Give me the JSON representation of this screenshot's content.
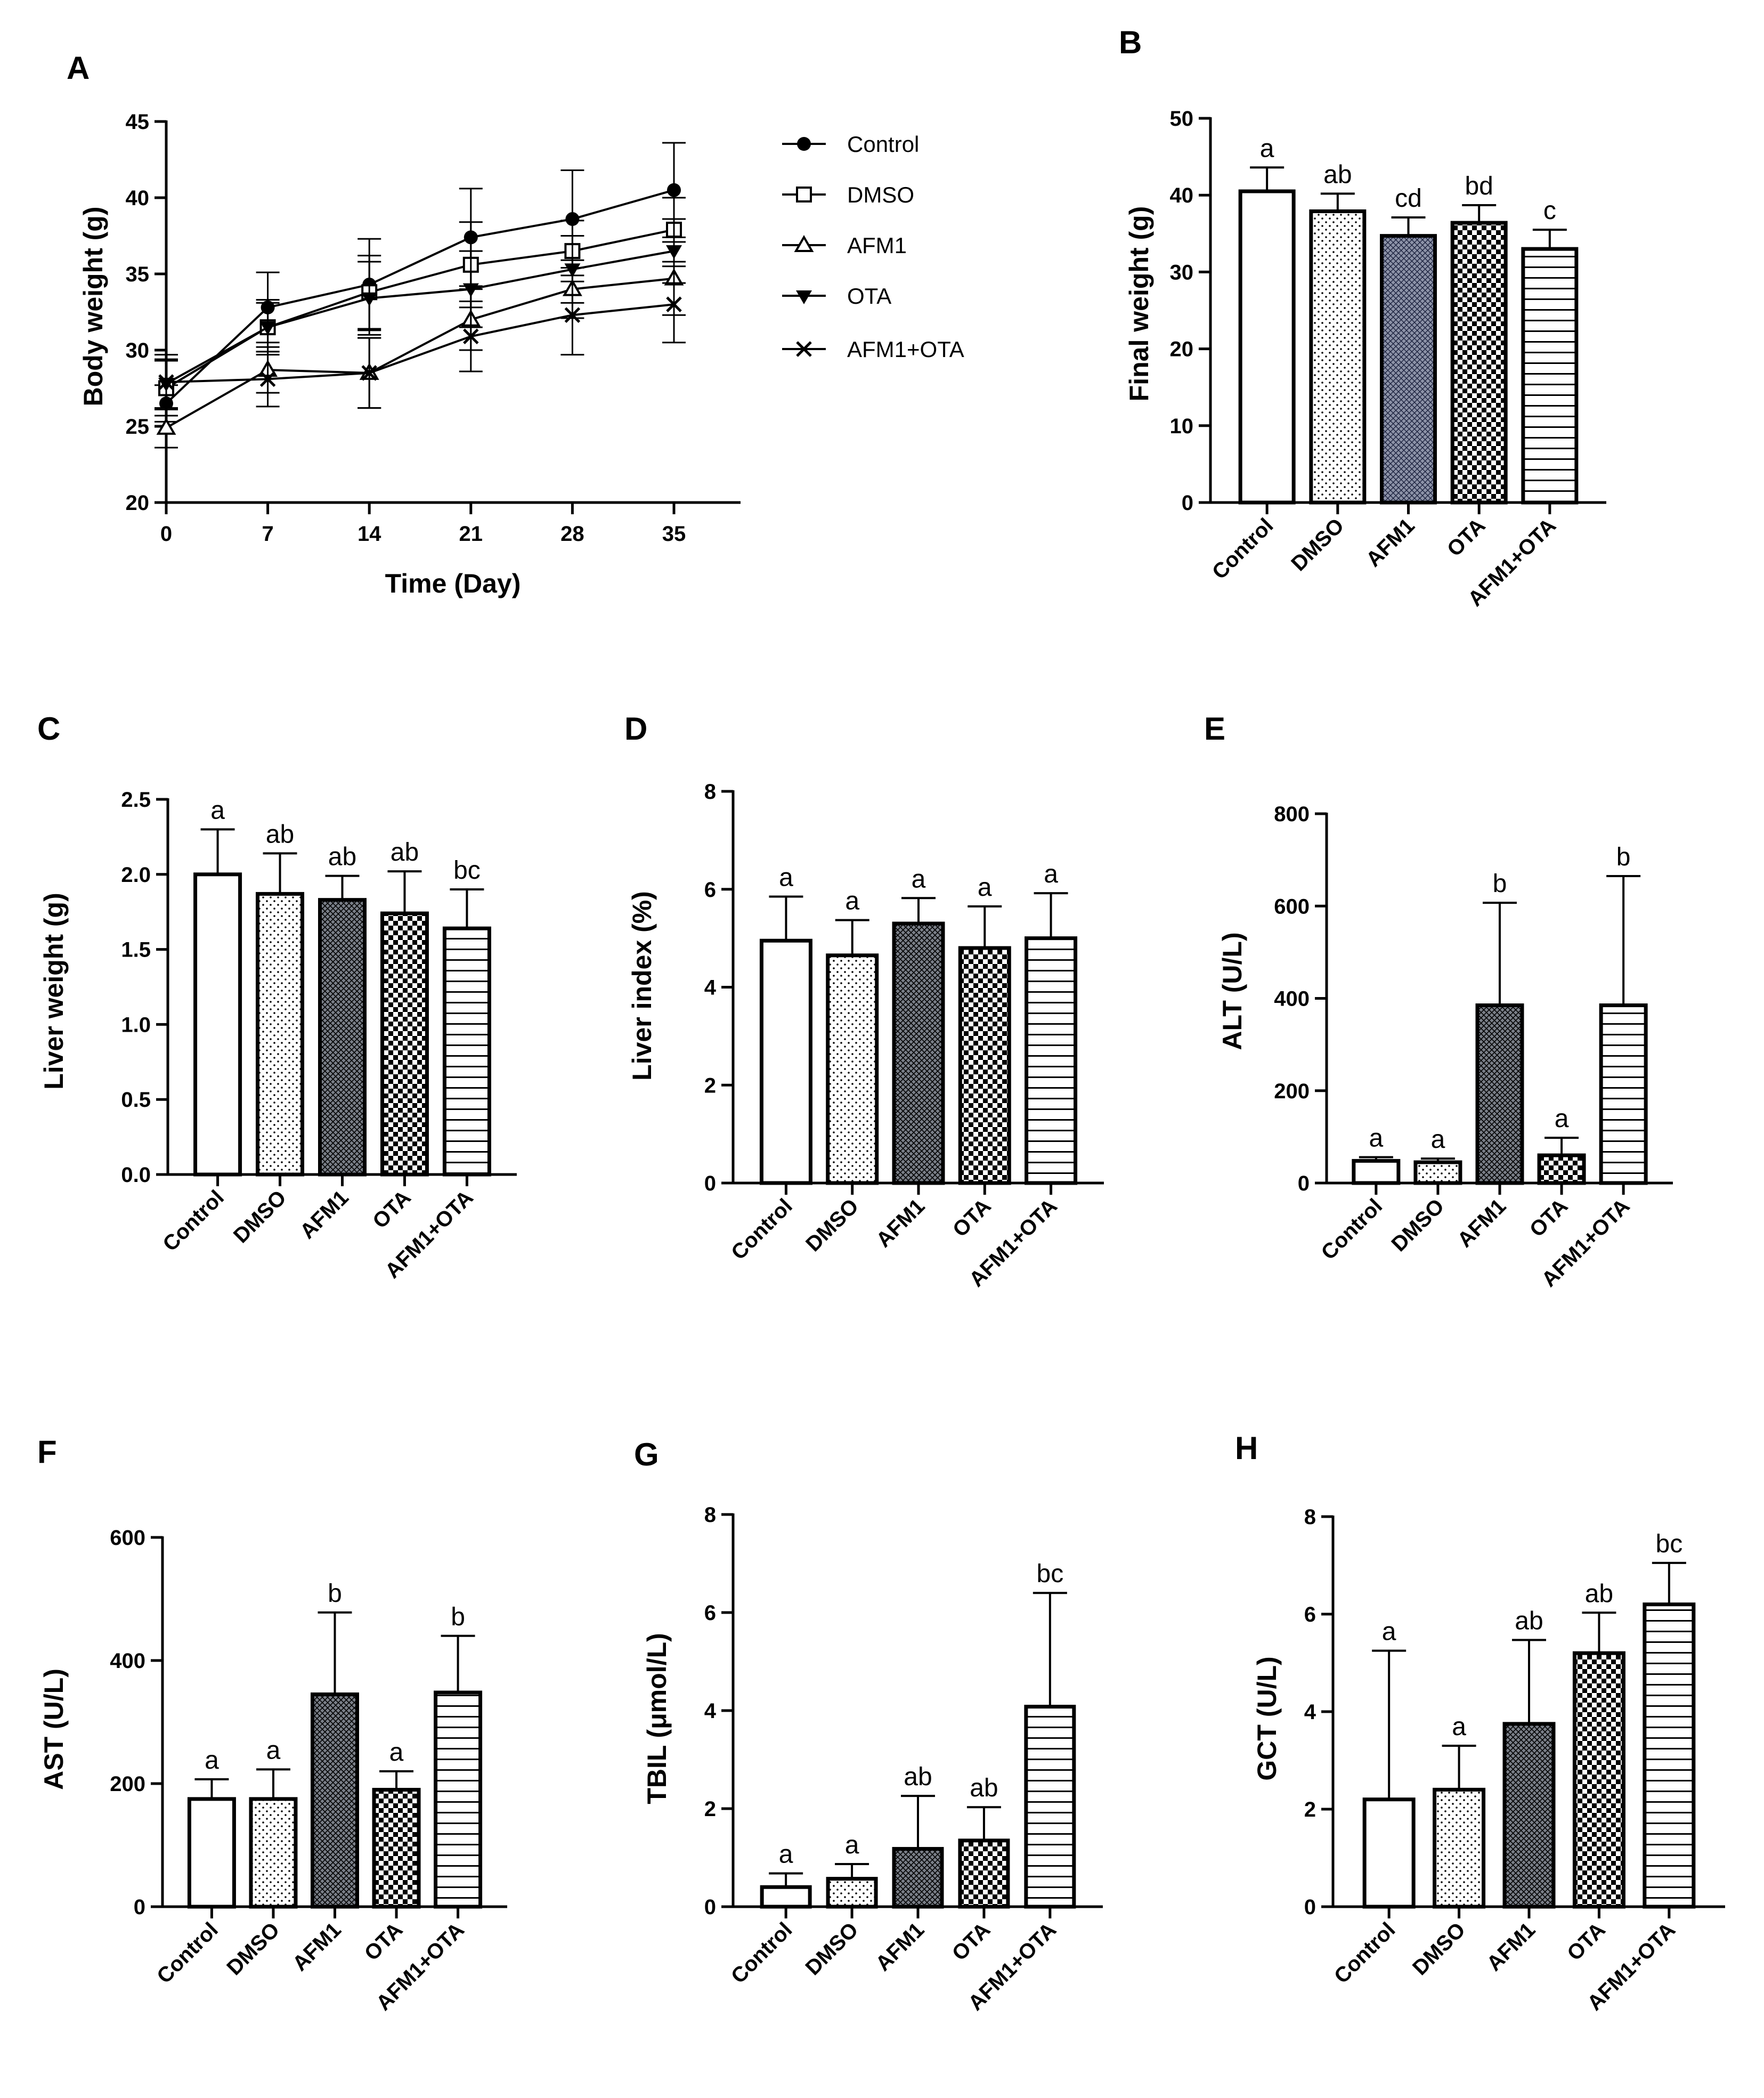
{
  "colors": {
    "ink": "#000000",
    "afm1_fill": "#8d93a8",
    "background": "#ffffff"
  },
  "chart_data": [
    {
      "id": "A",
      "type": "line",
      "panel": "A",
      "title": "",
      "xlabel": "Time (Day)",
      "ylabel": "Body weight (g)",
      "x": [
        0,
        7,
        14,
        21,
        28,
        35
      ],
      "xticks": [
        "0",
        "7",
        "14",
        "21",
        "28",
        "35"
      ],
      "ylim": [
        20,
        45
      ],
      "yticks": [
        "20",
        "25",
        "30",
        "35",
        "40",
        "45"
      ],
      "legend_position": "right",
      "series": [
        {
          "name": "Control",
          "marker": "filled-circle",
          "values": [
            26.5,
            32.8,
            34.3,
            37.4,
            38.6,
            40.5
          ],
          "err": [
            1.2,
            2.3,
            3.0,
            3.2,
            3.2,
            3.1
          ]
        },
        {
          "name": "DMSO",
          "marker": "open-square",
          "values": [
            27.5,
            31.5,
            33.8,
            35.6,
            36.5,
            37.9
          ],
          "err": [
            1.8,
            1.6,
            2.4,
            2.8,
            2.0,
            2.1
          ]
        },
        {
          "name": "AFM1",
          "marker": "open-triangle",
          "values": [
            24.9,
            28.7,
            28.5,
            32.0,
            34.0,
            34.7
          ],
          "err": [
            1.3,
            1.5,
            2.3,
            2.0,
            1.9,
            2.4
          ]
        },
        {
          "name": "OTA",
          "marker": "filled-triangle-down",
          "values": [
            27.8,
            31.5,
            33.4,
            34.0,
            35.3,
            36.5
          ],
          "err": [
            1.6,
            1.8,
            2.4,
            2.5,
            2.2,
            2.1
          ]
        },
        {
          "name": "AFM1+OTA",
          "marker": "x-cross",
          "values": [
            27.9,
            28.1,
            28.5,
            30.9,
            32.3,
            33.0
          ],
          "err": [
            1.8,
            1.8,
            2.3,
            2.3,
            2.6,
            2.5
          ]
        }
      ]
    },
    {
      "id": "B",
      "type": "bar",
      "panel": "B",
      "title": "",
      "xlabel": "",
      "ylabel": "Final weight (g)",
      "categories": [
        "Control",
        "DMSO",
        "AFM1",
        "OTA",
        "AFM1+OTA"
      ],
      "values": [
        40.5,
        37.9,
        34.7,
        36.4,
        33.0
      ],
      "err": [
        3.1,
        2.3,
        2.4,
        2.3,
        2.5
      ],
      "labels": [
        "a",
        "ab",
        "cd",
        "bd",
        "c"
      ],
      "ylim": [
        0,
        50
      ],
      "yticks": [
        "0",
        "10",
        "20",
        "30",
        "40",
        "50"
      ]
    },
    {
      "id": "C",
      "type": "bar",
      "panel": "C",
      "title": "",
      "xlabel": "",
      "ylabel": "Liver weight (g)",
      "categories": [
        "Control",
        "DMSO",
        "AFM1",
        "OTA",
        "AFM1+OTA"
      ],
      "values": [
        2.0,
        1.87,
        1.83,
        1.74,
        1.64
      ],
      "err": [
        0.3,
        0.27,
        0.16,
        0.28,
        0.26
      ],
      "labels": [
        "a",
        "ab",
        "ab",
        "ab",
        "bc"
      ],
      "ylim": [
        0,
        2.5
      ],
      "yticks": [
        "0.0",
        "0.5",
        "1.0",
        "1.5",
        "2.0",
        "2.5"
      ]
    },
    {
      "id": "D",
      "type": "bar",
      "panel": "D",
      "title": "",
      "xlabel": "",
      "ylabel": "Liver index (%)",
      "categories": [
        "Control",
        "DMSO",
        "AFM1",
        "OTA",
        "AFM1+OTA"
      ],
      "values": [
        4.95,
        4.65,
        5.3,
        4.8,
        5.0
      ],
      "err": [
        0.9,
        0.72,
        0.52,
        0.85,
        0.92
      ],
      "labels": [
        "a",
        "a",
        "a",
        "a",
        "a"
      ],
      "ylim": [
        0,
        8
      ],
      "yticks": [
        "0",
        "2",
        "4",
        "6",
        "8"
      ]
    },
    {
      "id": "E",
      "type": "bar",
      "panel": "E",
      "title": "",
      "xlabel": "",
      "ylabel": "ALT (U/L)",
      "categories": [
        "Control",
        "DMSO",
        "AFM1",
        "OTA",
        "AFM1+OTA"
      ],
      "values": [
        48,
        45,
        385,
        60,
        385
      ],
      "err": [
        8,
        8,
        222,
        38,
        280
      ],
      "labels": [
        "a",
        "a",
        "b",
        "a",
        "b"
      ],
      "ylim": [
        0,
        800
      ],
      "yticks": [
        "0",
        "200",
        "400",
        "600",
        "800"
      ]
    },
    {
      "id": "F",
      "type": "bar",
      "panel": "F",
      "title": "",
      "xlabel": "",
      "ylabel": "AST (U/L)",
      "categories": [
        "Control",
        "DMSO",
        "AFM1",
        "OTA",
        "AFM1+OTA"
      ],
      "values": [
        175,
        175,
        345,
        190,
        348
      ],
      "err": [
        32,
        48,
        133,
        30,
        92
      ],
      "labels": [
        "a",
        "a",
        "b",
        "a",
        "b"
      ],
      "ylim": [
        0,
        600
      ],
      "yticks": [
        "0",
        "200",
        "400",
        "600"
      ]
    },
    {
      "id": "G",
      "type": "bar",
      "panel": "G",
      "title": "",
      "xlabel": "",
      "ylabel": "TBIL (μmol/L)",
      "categories": [
        "Control",
        "DMSO",
        "AFM1",
        "OTA",
        "AFM1+OTA"
      ],
      "values": [
        0.4,
        0.57,
        1.18,
        1.35,
        4.08
      ],
      "err": [
        0.28,
        0.3,
        1.08,
        0.68,
        2.32
      ],
      "labels": [
        "a",
        "a",
        "ab",
        "ab",
        "bc"
      ],
      "ylim": [
        0,
        8
      ],
      "yticks": [
        "0",
        "2",
        "4",
        "6",
        "8"
      ]
    },
    {
      "id": "H",
      "type": "bar",
      "panel": "H",
      "title": "",
      "xlabel": "",
      "ylabel": "GCT (U/L)",
      "categories": [
        "Control",
        "DMSO",
        "AFM1",
        "OTA",
        "AFM1+OTA"
      ],
      "values": [
        2.2,
        2.4,
        3.75,
        5.2,
        6.2
      ],
      "err": [
        3.05,
        0.9,
        1.72,
        0.83,
        0.85
      ],
      "labels": [
        "a",
        "a",
        "ab",
        "ab",
        "bc"
      ],
      "ylim": [
        0,
        8
      ],
      "yticks": [
        "0",
        "2",
        "4",
        "6",
        "8"
      ]
    }
  ]
}
